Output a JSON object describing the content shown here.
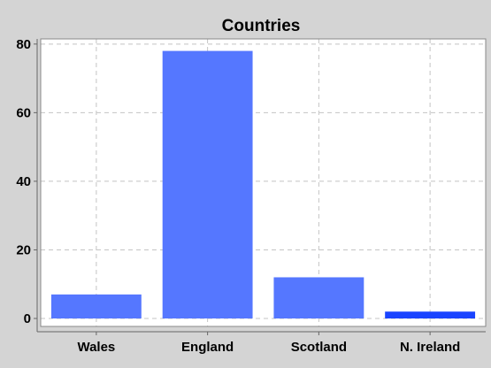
{
  "chart_data": {
    "type": "bar",
    "title": "Countries",
    "xlabel": "",
    "ylabel": "",
    "categories": [
      "Wales",
      "England",
      "Scotland",
      "N. Ireland"
    ],
    "values": [
      7,
      78,
      12,
      2
    ],
    "ylim": [
      0,
      81.5
    ],
    "yticks": [
      "0",
      "20",
      "40",
      "60",
      "80"
    ],
    "grid": true,
    "colors": [
      "#5577ff",
      "#5577ff",
      "#5577ff",
      "#1a44ff"
    ]
  }
}
